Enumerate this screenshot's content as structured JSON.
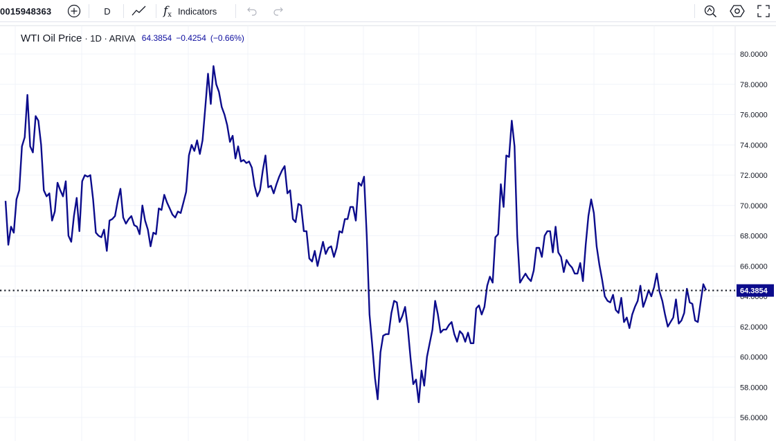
{
  "toolbar": {
    "symbol": "0015948363",
    "add_symbol_icon": "plus-circle-icon",
    "interval": "D",
    "chart_type_icon": "line-chart-icon",
    "indicators_icon": "fx-icon",
    "indicators_label": "Indicators",
    "undo_icon": "undo-icon",
    "redo_icon": "redo-icon",
    "alert_icon": "alert-icon",
    "settings_icon": "gear-icon",
    "fullscreen_icon": "fullscreen-icon"
  },
  "legend": {
    "title": "WTI Oil Price",
    "interval_source": "· 1D · ARIVA",
    "value": "64.3854",
    "change": "−0.4254",
    "change_pct": "(−0.66%)"
  },
  "colors": {
    "line": "#0c0c8c",
    "price_label_bg": "#0c0c8c",
    "grid": "#f0f3fa"
  },
  "chart_data": {
    "type": "line",
    "title": "WTI Oil Price",
    "xlabel": "",
    "ylabel": "",
    "ylim": [
      55.0,
      80.8
    ],
    "y_ticks": [
      "80.0000",
      "78.0000",
      "76.0000",
      "74.0000",
      "72.0000",
      "70.0000",
      "68.0000",
      "66.0000",
      "64.0000",
      "62.0000",
      "60.0000",
      "58.0000",
      "56.0000"
    ],
    "grid": true,
    "last_price_label": "64.3854",
    "last_price": 64.3854,
    "series": [
      {
        "values": [
          70.3,
          67.4,
          68.6,
          68.2,
          70.4,
          71.0,
          73.9,
          74.5,
          77.3,
          73.9,
          73.5,
          75.9,
          75.6,
          74.0,
          71.0,
          70.6,
          70.8,
          69.0,
          69.6,
          71.5,
          71.0,
          70.6,
          71.6,
          68.0,
          67.6,
          69.3,
          70.5,
          68.3,
          71.6,
          72.0,
          71.9,
          72.0,
          70.4,
          68.2,
          68.0,
          67.9,
          68.4,
          67.0,
          69.0,
          69.1,
          69.3,
          70.3,
          71.1,
          69.2,
          68.8,
          69.1,
          69.3,
          68.7,
          68.6,
          68.1,
          70.0,
          69.0,
          68.4,
          67.3,
          68.2,
          68.1,
          69.8,
          69.7,
          70.7,
          70.2,
          69.8,
          69.4,
          69.2,
          69.6,
          69.5,
          70.2,
          70.9,
          73.3,
          74.0,
          73.6,
          74.3,
          73.4,
          74.3,
          76.5,
          78.7,
          76.7,
          79.2,
          78.0,
          77.5,
          76.5,
          76.0,
          75.3,
          74.2,
          74.6,
          73.1,
          73.9,
          72.9,
          73.0,
          72.8,
          72.9,
          72.5,
          71.3,
          70.6,
          71.0,
          72.3,
          73.3,
          71.2,
          71.3,
          70.8,
          71.4,
          71.9,
          72.3,
          72.6,
          70.8,
          71.0,
          69.1,
          68.9,
          70.1,
          70.0,
          68.3,
          68.3,
          66.5,
          66.3,
          67.0,
          66.0,
          66.8,
          67.6,
          66.8,
          67.2,
          67.3,
          66.6,
          67.2,
          68.3,
          68.2,
          69.1,
          69.1,
          69.9,
          69.9,
          69.0,
          71.5,
          71.3,
          71.9,
          68.0,
          62.8,
          60.8,
          58.6,
          57.2,
          60.3,
          61.4,
          61.5,
          61.5,
          62.9,
          63.7,
          63.6,
          62.3,
          62.7,
          63.3,
          61.9,
          59.9,
          58.2,
          58.5,
          57.0,
          59.1,
          58.1,
          60.0,
          60.9,
          61.8,
          63.7,
          62.8,
          61.6,
          61.8,
          61.8,
          62.1,
          62.3,
          61.5,
          61.0,
          61.7,
          61.5,
          61.0,
          61.6,
          60.9,
          60.9,
          63.2,
          63.4,
          62.8,
          63.3,
          64.7,
          65.3,
          64.9,
          67.9,
          68.1,
          71.4,
          69.9,
          73.3,
          73.2,
          75.6,
          73.9,
          68.0,
          64.9,
          65.2,
          65.5,
          65.2,
          65.0,
          65.7,
          67.2,
          67.2,
          66.6,
          68.0,
          68.3,
          68.3,
          66.9,
          68.6,
          66.9,
          66.6,
          65.6,
          66.4,
          66.1,
          65.9,
          65.5,
          65.5,
          66.2,
          65.0,
          67.4,
          69.3,
          70.4,
          69.5,
          67.3,
          66.1,
          65.1,
          64.0,
          63.7,
          63.6,
          64.1,
          63.1,
          62.9,
          63.9,
          62.3,
          62.6,
          61.9,
          62.8,
          63.3,
          63.7,
          64.7,
          63.3,
          63.8,
          64.4,
          64.0,
          64.6,
          65.5,
          64.3,
          63.7,
          62.8,
          62.0,
          62.3,
          62.6,
          63.8,
          62.2,
          62.4,
          62.9,
          64.5,
          63.6,
          63.5,
          62.4,
          62.3,
          63.6,
          64.8,
          64.4
        ]
      }
    ]
  }
}
